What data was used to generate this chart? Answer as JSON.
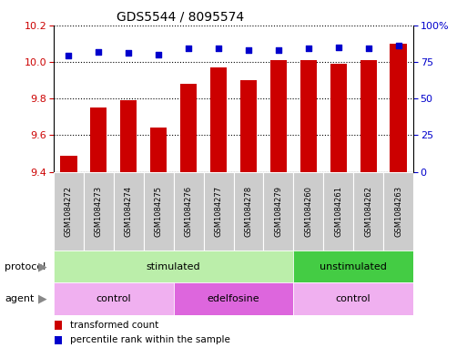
{
  "title": "GDS5544 / 8095574",
  "samples": [
    "GSM1084272",
    "GSM1084273",
    "GSM1084274",
    "GSM1084275",
    "GSM1084276",
    "GSM1084277",
    "GSM1084278",
    "GSM1084279",
    "GSM1084260",
    "GSM1084261",
    "GSM1084262",
    "GSM1084263"
  ],
  "transformed_count": [
    9.49,
    9.75,
    9.79,
    9.64,
    9.88,
    9.97,
    9.9,
    10.01,
    10.01,
    9.99,
    10.01,
    10.1
  ],
  "percentile_rank": [
    79,
    82,
    81,
    80,
    84,
    84,
    83,
    83,
    84,
    85,
    84,
    86
  ],
  "ylim_left": [
    9.4,
    10.2
  ],
  "ylim_right": [
    0,
    100
  ],
  "yticks_left": [
    9.4,
    9.6,
    9.8,
    10.0,
    10.2
  ],
  "yticks_right": [
    0,
    25,
    50,
    75,
    100
  ],
  "bar_color": "#cc0000",
  "dot_color": "#0000cc",
  "protocol_groups": [
    {
      "label": "stimulated",
      "start": 0,
      "end": 7,
      "color": "#bbeeaa"
    },
    {
      "label": "unstimulated",
      "start": 8,
      "end": 11,
      "color": "#44cc44"
    }
  ],
  "agent_groups": [
    {
      "label": "control",
      "start": 0,
      "end": 3,
      "color": "#f0b0f0"
    },
    {
      "label": "edelfosine",
      "start": 4,
      "end": 7,
      "color": "#dd66dd"
    },
    {
      "label": "control",
      "start": 8,
      "end": 11,
      "color": "#f0b0f0"
    }
  ],
  "legend_bar_label": "transformed count",
  "legend_dot_label": "percentile rank within the sample",
  "protocol_label": "protocol",
  "agent_label": "agent",
  "bg_color": "#ffffff",
  "xlabel_bg": "#cccccc",
  "title_fontsize": 10,
  "tick_fontsize": 8,
  "label_fontsize": 8
}
